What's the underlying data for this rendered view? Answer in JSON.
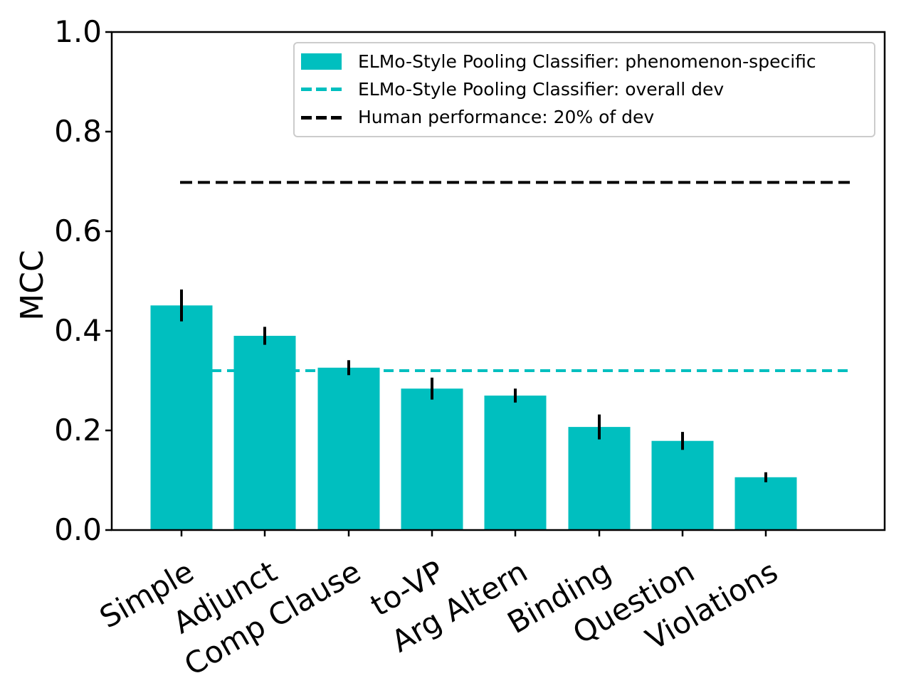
{
  "chart_data": {
    "type": "bar",
    "title": "",
    "xlabel": "",
    "ylabel": "MCC",
    "categories": [
      "Simple",
      "Adjunct",
      "Comp Clause",
      "to-VP",
      "Arg Altern",
      "Binding",
      "Question",
      "Violations"
    ],
    "values": [
      0.451,
      0.39,
      0.326,
      0.284,
      0.27,
      0.207,
      0.179,
      0.106
    ],
    "error_bars": [
      0.032,
      0.018,
      0.015,
      0.022,
      0.014,
      0.025,
      0.018,
      0.01
    ],
    "bar_color": "#00bfbf",
    "error_bar_color": "#000000",
    "ylim": [
      0.0,
      1.0
    ],
    "ytick_labels": [
      "0.0",
      "0.2",
      "0.4",
      "0.6",
      "0.8",
      "1.0"
    ],
    "xtick_rotation_deg": 30,
    "grid": false,
    "reference_lines": [
      {
        "name": "overall-dev",
        "value": 0.32,
        "color": "#00bfbf",
        "line_style": "dashed"
      },
      {
        "name": "human-performance",
        "value": 0.698,
        "color": "#000000",
        "line_style": "dashed"
      }
    ],
    "legend": {
      "position": "upper right",
      "entries": [
        {
          "label": "ELMo-Style Pooling Classifier: phenomenon-specific",
          "marker": "patch",
          "color": "#00bfbf"
        },
        {
          "label": "ELMo-Style Pooling Classifier: overall dev",
          "marker": "dashed-line",
          "color": "#00bfbf"
        },
        {
          "label": "Human performance: 20% of dev",
          "marker": "dashed-line",
          "color": "#000000"
        }
      ]
    }
  }
}
